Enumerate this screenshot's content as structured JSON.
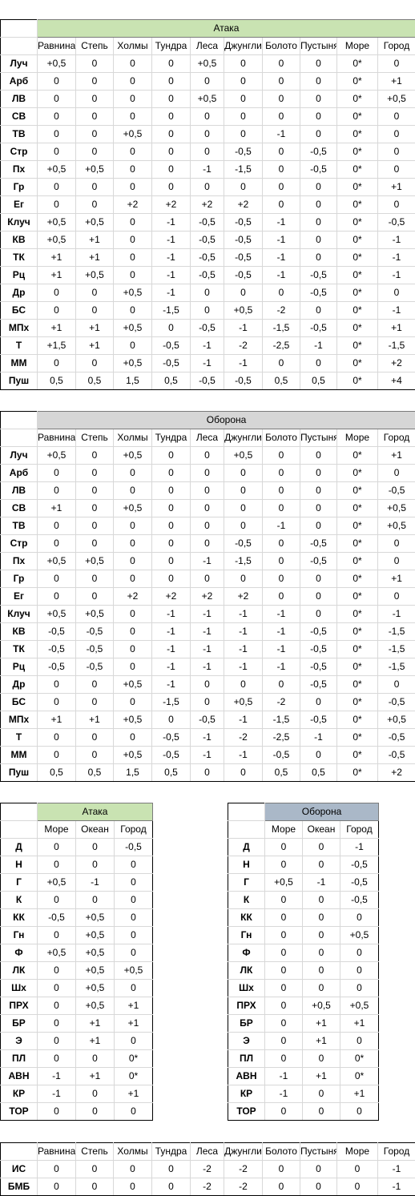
{
  "terrain_cols": [
    "Равнина",
    "Степь",
    "Холмы",
    "Тундра",
    "Леса",
    "Джунгли",
    "Болото",
    "Пустыня",
    "Море",
    "Город"
  ],
  "water_cols": [
    "Море",
    "Океан",
    "Город"
  ],
  "land_attack": {
    "title": "Атака",
    "rows": [
      {
        "name": "Луч",
        "v": [
          "+0,5",
          "0",
          "0",
          "0",
          "+0,5",
          "0",
          "0",
          "0",
          "0*",
          "0"
        ]
      },
      {
        "name": "Арб",
        "v": [
          "0",
          "0",
          "0",
          "0",
          "0",
          "0",
          "0",
          "0",
          "0*",
          "+1"
        ]
      },
      {
        "name": "ЛВ",
        "v": [
          "0",
          "0",
          "0",
          "0",
          "+0,5",
          "0",
          "0",
          "0",
          "0*",
          "+0,5"
        ]
      },
      {
        "name": "СВ",
        "v": [
          "0",
          "0",
          "0",
          "0",
          "0",
          "0",
          "0",
          "0",
          "0*",
          "0"
        ]
      },
      {
        "name": "ТВ",
        "v": [
          "0",
          "0",
          "+0,5",
          "0",
          "0",
          "0",
          "-1",
          "0",
          "0*",
          "0"
        ]
      },
      {
        "name": "Стр",
        "v": [
          "0",
          "0",
          "0",
          "0",
          "0",
          "-0,5",
          "0",
          "-0,5",
          "0*",
          "0"
        ]
      },
      {
        "name": "Пх",
        "v": [
          "+0,5",
          "+0,5",
          "0",
          "0",
          "-1",
          "-1,5",
          "0",
          "-0,5",
          "0*",
          "0"
        ]
      },
      {
        "name": "Гр",
        "v": [
          "0",
          "0",
          "0",
          "0",
          "0",
          "0",
          "0",
          "0",
          "0*",
          "+1"
        ]
      },
      {
        "name": "Ег",
        "v": [
          "0",
          "0",
          "+2",
          "+2",
          "+2",
          "+2",
          "0",
          "0",
          "0*",
          "0"
        ]
      },
      {
        "name": "Клуч",
        "v": [
          "+0,5",
          "+0,5",
          "0",
          "-1",
          "-0,5",
          "-0,5",
          "-1",
          "0",
          "0*",
          "-0,5"
        ]
      },
      {
        "name": "КВ",
        "v": [
          "+0,5",
          "+1",
          "0",
          "-1",
          "-0,5",
          "-0,5",
          "-1",
          "0",
          "0*",
          "-1"
        ]
      },
      {
        "name": "ТК",
        "v": [
          "+1",
          "+1",
          "0",
          "-1",
          "-0,5",
          "-0,5",
          "-1",
          "0",
          "0*",
          "-1"
        ]
      },
      {
        "name": "Рц",
        "v": [
          "+1",
          "+0,5",
          "0",
          "-1",
          "-0,5",
          "-0,5",
          "-1",
          "-0,5",
          "0*",
          "-1"
        ]
      },
      {
        "name": "Др",
        "v": [
          "0",
          "0",
          "+0,5",
          "-1",
          "0",
          "0",
          "0",
          "-0,5",
          "0*",
          "0"
        ]
      },
      {
        "name": "БС",
        "v": [
          "0",
          "0",
          "0",
          "-1,5",
          "0",
          "+0,5",
          "-2",
          "0",
          "0*",
          "-1"
        ]
      },
      {
        "name": "МПх",
        "v": [
          "+1",
          "+1",
          "+0,5",
          "0",
          "-0,5",
          "-1",
          "-1,5",
          "-0,5",
          "0*",
          "+1"
        ]
      },
      {
        "name": "Т",
        "v": [
          "+1,5",
          "+1",
          "0",
          "-0,5",
          "-1",
          "-2",
          "-2,5",
          "-1",
          "0*",
          "-1,5"
        ]
      },
      {
        "name": "ММ",
        "v": [
          "0",
          "0",
          "+0,5",
          "-0,5",
          "-1",
          "-1",
          "0",
          "0",
          "0*",
          "+2"
        ]
      },
      {
        "name": "Пуш",
        "v": [
          "0,5",
          "0,5",
          "1,5",
          "0,5",
          "-0,5",
          "-0,5",
          "0,5",
          "0,5",
          "0*",
          "+4"
        ]
      }
    ]
  },
  "land_defense": {
    "title": "Оборона",
    "rows": [
      {
        "name": "Луч",
        "v": [
          "+0,5",
          "0",
          "+0,5",
          "0",
          "0",
          "+0,5",
          "0",
          "0",
          "0*",
          "+1"
        ]
      },
      {
        "name": "Арб",
        "v": [
          "0",
          "0",
          "0",
          "0",
          "0",
          "0",
          "0",
          "0",
          "0*",
          "0"
        ]
      },
      {
        "name": "ЛВ",
        "v": [
          "0",
          "0",
          "0",
          "0",
          "0",
          "0",
          "0",
          "0",
          "0*",
          "-0,5"
        ]
      },
      {
        "name": "СВ",
        "v": [
          "+1",
          "0",
          "+0,5",
          "0",
          "0",
          "0",
          "0",
          "0",
          "0*",
          "+0,5"
        ]
      },
      {
        "name": "ТВ",
        "v": [
          "0",
          "0",
          "0",
          "0",
          "0",
          "0",
          "-1",
          "0",
          "0*",
          "+0,5"
        ]
      },
      {
        "name": "Стр",
        "v": [
          "0",
          "0",
          "0",
          "0",
          "0",
          "-0,5",
          "0",
          "-0,5",
          "0*",
          "0"
        ]
      },
      {
        "name": "Пх",
        "v": [
          "+0,5",
          "+0,5",
          "0",
          "0",
          "-1",
          "-1,5",
          "0",
          "-0,5",
          "0*",
          "0"
        ]
      },
      {
        "name": "Гр",
        "v": [
          "0",
          "0",
          "0",
          "0",
          "0",
          "0",
          "0",
          "0",
          "0*",
          "+1"
        ]
      },
      {
        "name": "Ег",
        "v": [
          "0",
          "0",
          "+2",
          "+2",
          "+2",
          "+2",
          "0",
          "0",
          "0*",
          "0"
        ]
      },
      {
        "name": "Клуч",
        "v": [
          "+0,5",
          "+0,5",
          "0",
          "-1",
          "-1",
          "-1",
          "-1",
          "0",
          "0*",
          "-1"
        ]
      },
      {
        "name": "КВ",
        "v": [
          "-0,5",
          "-0,5",
          "0",
          "-1",
          "-1",
          "-1",
          "-1",
          "-0,5",
          "0*",
          "-1,5"
        ]
      },
      {
        "name": "ТК",
        "v": [
          "-0,5",
          "-0,5",
          "0",
          "-1",
          "-1",
          "-1",
          "-1",
          "-0,5",
          "0*",
          "-1,5"
        ]
      },
      {
        "name": "Рц",
        "v": [
          "-0,5",
          "-0,5",
          "0",
          "-1",
          "-1",
          "-1",
          "-1",
          "-0,5",
          "0*",
          "-1,5"
        ]
      },
      {
        "name": "Др",
        "v": [
          "0",
          "0",
          "+0,5",
          "-1",
          "0",
          "0",
          "0",
          "-0,5",
          "0*",
          "0"
        ]
      },
      {
        "name": "БС",
        "v": [
          "0",
          "0",
          "0",
          "-1,5",
          "0",
          "+0,5",
          "-2",
          "0",
          "0*",
          "-0,5"
        ]
      },
      {
        "name": "МПх",
        "v": [
          "+1",
          "+1",
          "+0,5",
          "0",
          "-0,5",
          "-1",
          "-1,5",
          "-0,5",
          "0*",
          "+0,5"
        ]
      },
      {
        "name": "Т",
        "v": [
          "0",
          "0",
          "0",
          "-0,5",
          "-1",
          "-2",
          "-2,5",
          "-1",
          "0*",
          "-0,5"
        ]
      },
      {
        "name": "ММ",
        "v": [
          "0",
          "0",
          "+0,5",
          "-0,5",
          "-1",
          "-1",
          "-0,5",
          "0",
          "0*",
          "-0,5"
        ]
      },
      {
        "name": "Пуш",
        "v": [
          "0,5",
          "0,5",
          "1,5",
          "0,5",
          "0",
          "0",
          "0,5",
          "0,5",
          "0*",
          "+2"
        ]
      }
    ]
  },
  "naval_attack": {
    "title": "Атака",
    "rows": [
      {
        "name": "Д",
        "v": [
          "0",
          "0",
          "-0,5"
        ]
      },
      {
        "name": "Н",
        "v": [
          "0",
          "0",
          "0"
        ]
      },
      {
        "name": "Г",
        "v": [
          "+0,5",
          "-1",
          "0"
        ]
      },
      {
        "name": "К",
        "v": [
          "0",
          "0",
          "0"
        ]
      },
      {
        "name": "КК",
        "v": [
          "-0,5",
          "+0,5",
          "0"
        ]
      },
      {
        "name": "Гн",
        "v": [
          "0",
          "+0,5",
          "0"
        ]
      },
      {
        "name": "Ф",
        "v": [
          "+0,5",
          "+0,5",
          "0"
        ]
      },
      {
        "name": "ЛК",
        "v": [
          "0",
          "+0,5",
          "+0,5"
        ]
      },
      {
        "name": "Шх",
        "v": [
          "0",
          "+0,5",
          "0"
        ]
      },
      {
        "name": "ПРХ",
        "v": [
          "0",
          "+0,5",
          "+1"
        ]
      },
      {
        "name": "БР",
        "v": [
          "0",
          "+1",
          "+1"
        ]
      },
      {
        "name": "Э",
        "v": [
          "0",
          "+1",
          "0"
        ]
      },
      {
        "name": "ПЛ",
        "v": [
          "0",
          "0",
          "0*"
        ]
      },
      {
        "name": "АВН",
        "v": [
          "-1",
          "+1",
          "0*"
        ]
      },
      {
        "name": "КР",
        "v": [
          "-1",
          "0",
          "+1"
        ]
      },
      {
        "name": "ТОР",
        "v": [
          "0",
          "0",
          "0"
        ]
      }
    ]
  },
  "naval_defense": {
    "title": "Оборона",
    "rows": [
      {
        "name": "Д",
        "v": [
          "0",
          "0",
          "-1"
        ]
      },
      {
        "name": "Н",
        "v": [
          "0",
          "0",
          "-0,5"
        ]
      },
      {
        "name": "Г",
        "v": [
          "+0,5",
          "-1",
          "-0,5"
        ]
      },
      {
        "name": "К",
        "v": [
          "0",
          "0",
          "-0,5"
        ]
      },
      {
        "name": "КК",
        "v": [
          "0",
          "0",
          "0"
        ]
      },
      {
        "name": "Гн",
        "v": [
          "0",
          "0",
          "+0,5"
        ]
      },
      {
        "name": "Ф",
        "v": [
          "0",
          "0",
          "0"
        ]
      },
      {
        "name": "ЛК",
        "v": [
          "0",
          "0",
          "0"
        ]
      },
      {
        "name": "Шх",
        "v": [
          "0",
          "0",
          "0"
        ]
      },
      {
        "name": "ПРХ",
        "v": [
          "0",
          "+0,5",
          "+0,5"
        ]
      },
      {
        "name": "БР",
        "v": [
          "0",
          "+1",
          "+1"
        ]
      },
      {
        "name": "Э",
        "v": [
          "0",
          "+1",
          "0"
        ]
      },
      {
        "name": "ПЛ",
        "v": [
          "0",
          "0",
          "0*"
        ]
      },
      {
        "name": "АВН",
        "v": [
          "-1",
          "+1",
          "0*"
        ]
      },
      {
        "name": "КР",
        "v": [
          "-1",
          "0",
          "+1"
        ]
      },
      {
        "name": "ТОР",
        "v": [
          "0",
          "0",
          "0"
        ]
      }
    ]
  },
  "air": {
    "rows": [
      {
        "name": "ИС",
        "v": [
          "0",
          "0",
          "0",
          "0",
          "-2",
          "-2",
          "0",
          "0",
          "0",
          "-1"
        ]
      },
      {
        "name": "БМБ",
        "v": [
          "0",
          "0",
          "0",
          "0",
          "-2",
          "-2",
          "0",
          "0",
          "0",
          "-1"
        ]
      }
    ]
  }
}
